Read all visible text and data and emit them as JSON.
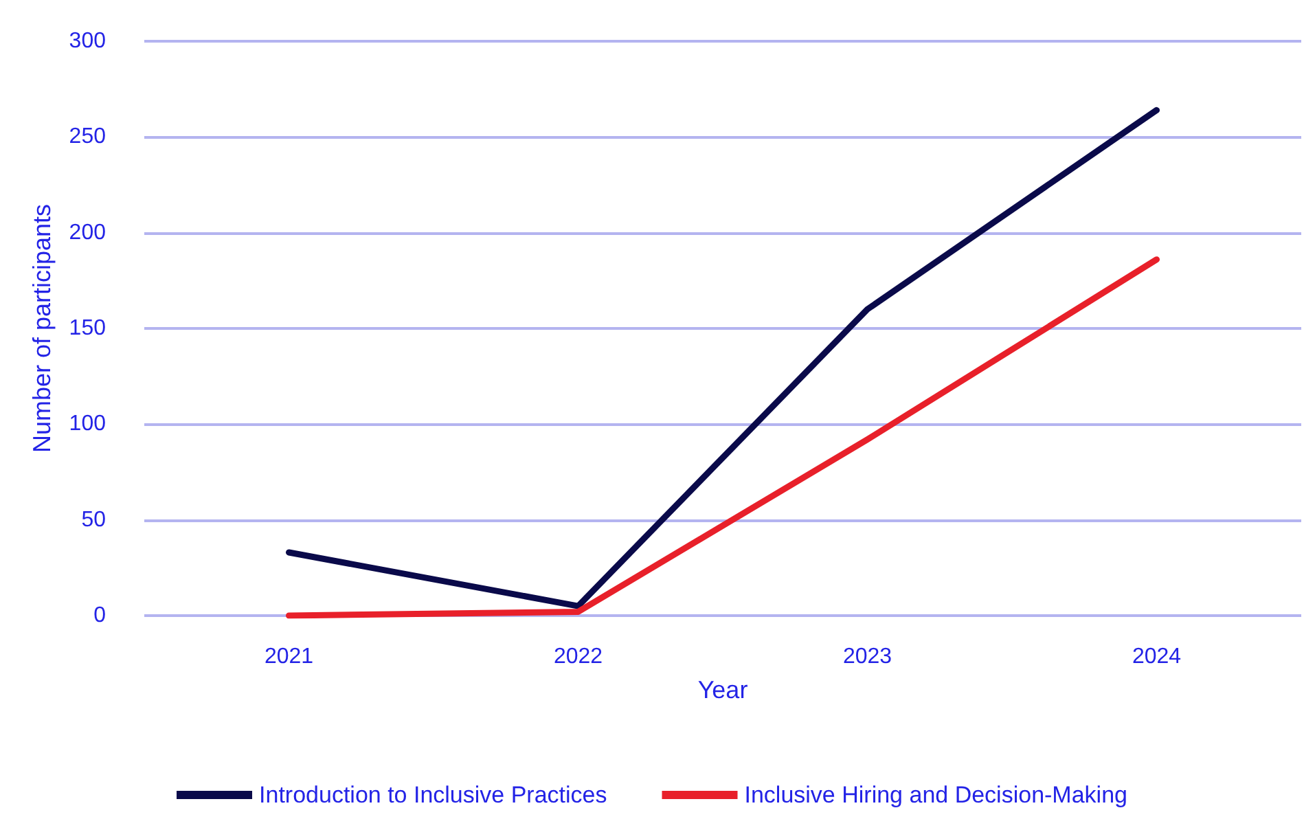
{
  "chart_data": {
    "type": "line",
    "xlabel": "Year",
    "ylabel": "Number of participants",
    "categories": [
      "2021",
      "2022",
      "2023",
      "2024"
    ],
    "series": [
      {
        "name": "Introduction to Inclusive Practices",
        "color": "#0a0a4a",
        "values": [
          33,
          5,
          160,
          264
        ]
      },
      {
        "name": "Inclusive Hiring and Decision-Making",
        "color": "#e8202a",
        "values": [
          0,
          2,
          92,
          186
        ]
      }
    ],
    "ylim": [
      0,
      300
    ],
    "yticks": [
      0,
      50,
      100,
      150,
      200,
      250,
      300
    ],
    "grid": "y",
    "legend": "bottom",
    "marker": "none",
    "line_style": "solid"
  }
}
